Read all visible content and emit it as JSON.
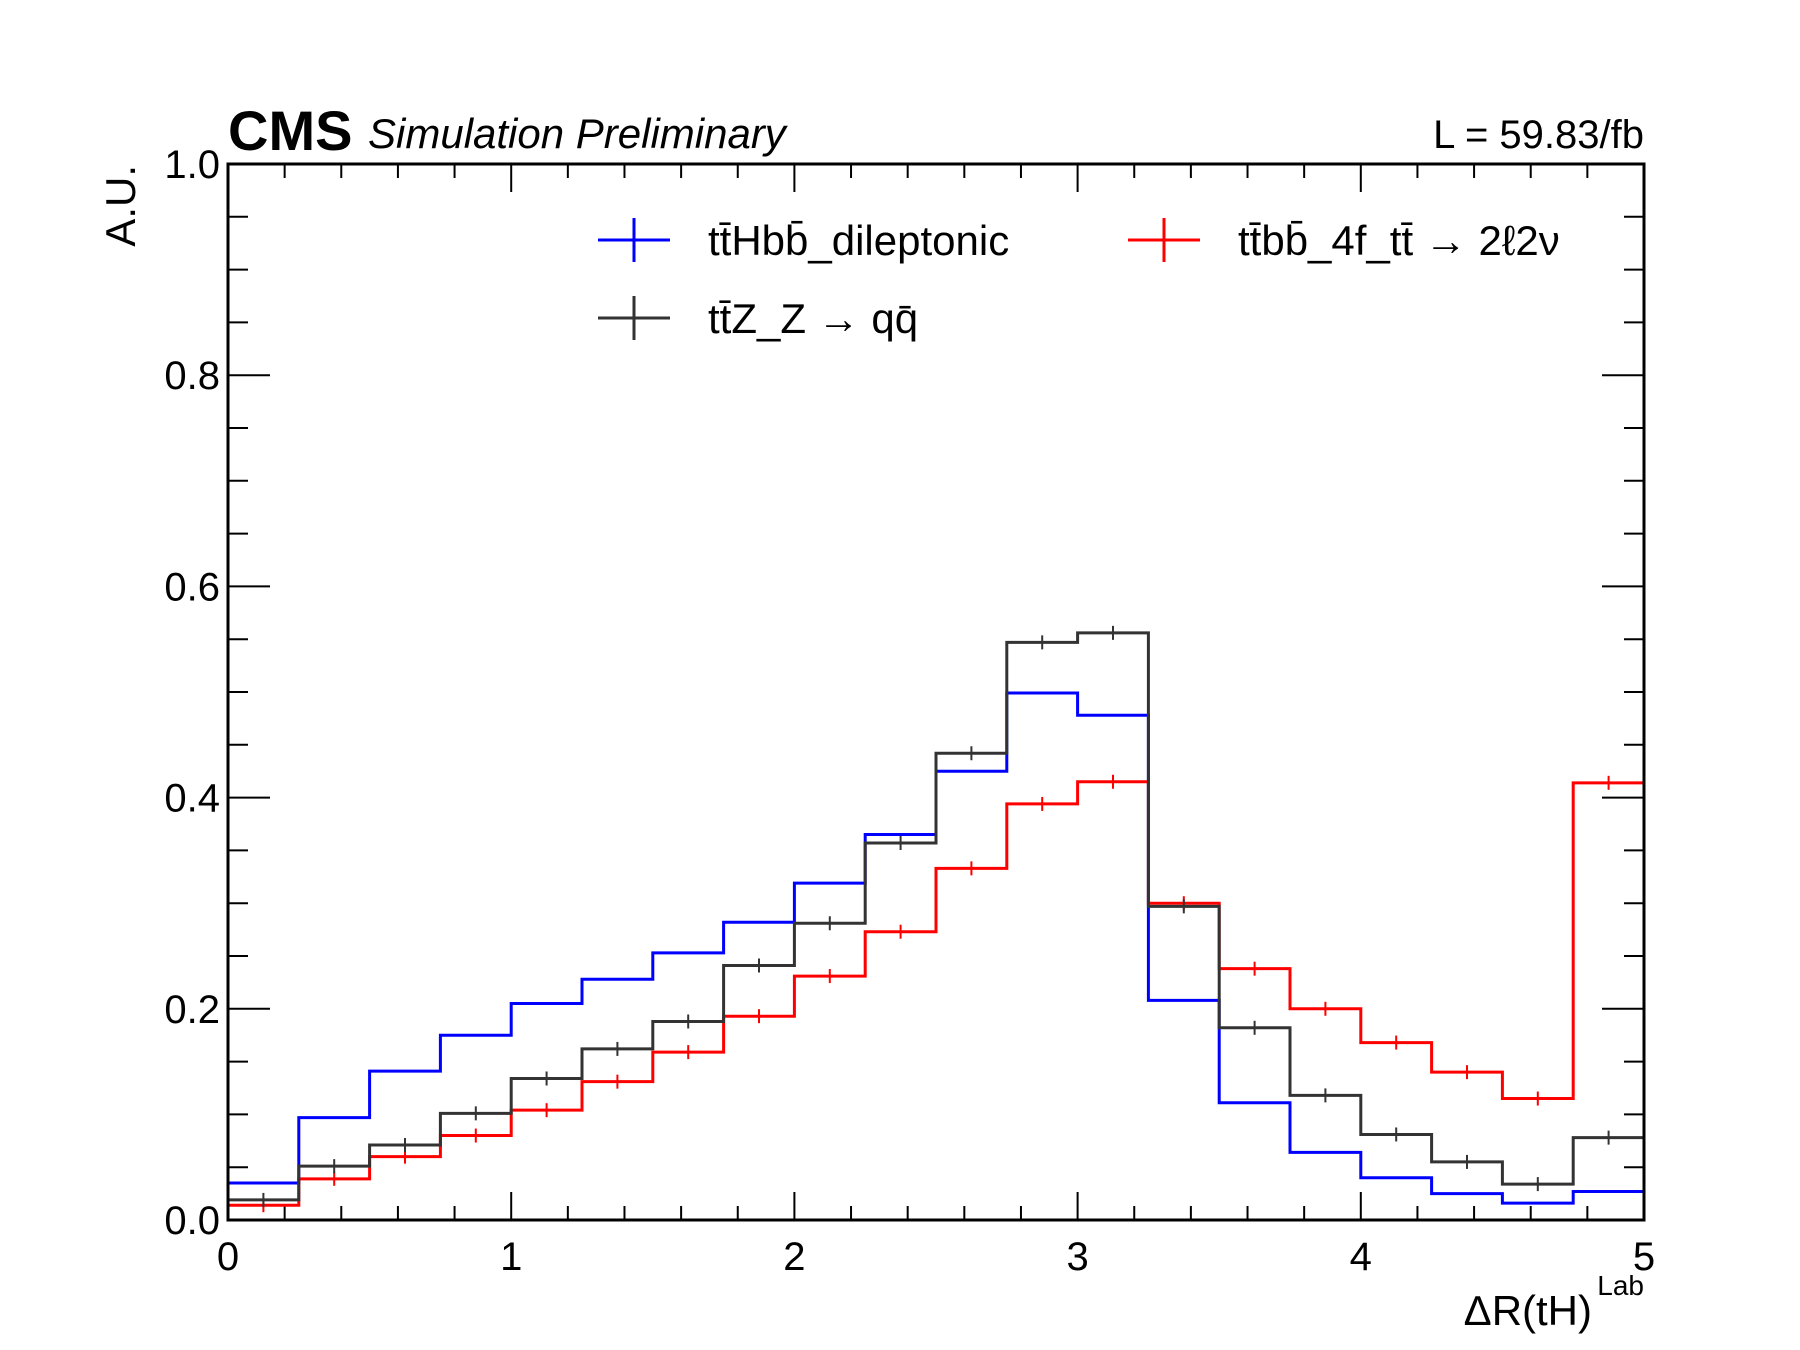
{
  "header": {
    "cms": "CMS",
    "subtitle": "Simulation Preliminary",
    "lumi": "L = 59.83/fb"
  },
  "chart_data": {
    "type": "line",
    "style": "step-histogram-with-error-bars",
    "xlabel": "ΔR(tH)",
    "xlabel_sup": "Lab",
    "ylabel": "A.U.",
    "xlim": [
      0,
      5
    ],
    "ylim": [
      0,
      1.0
    ],
    "x_ticks": [
      "0",
      "1",
      "2",
      "3",
      "4",
      "5"
    ],
    "y_ticks": [
      "0.0",
      "0.2",
      "0.4",
      "0.6",
      "0.8",
      "1.0"
    ],
    "bin_edges": [
      0,
      0.25,
      0.5,
      0.75,
      1.0,
      1.25,
      1.5,
      1.75,
      2.0,
      2.25,
      2.5,
      2.75,
      3.0,
      3.25,
      3.5,
      3.75,
      4.0,
      4.25,
      4.5,
      4.75,
      5.0
    ],
    "grid": false,
    "legend_position": "top",
    "series": [
      {
        "name": "tt̄Hbb̄_dileptonic",
        "color": "#0000ff",
        "values": [
          0.035,
          0.097,
          0.141,
          0.175,
          0.205,
          0.228,
          0.253,
          0.282,
          0.319,
          0.365,
          0.425,
          0.499,
          0.478,
          0.208,
          0.111,
          0.064,
          0.04,
          0.025,
          0.016,
          0.027
        ],
        "error_bars": false
      },
      {
        "name": "tt̄bb̄_4f_tt̄ → 2ℓ2ν",
        "color": "#ff0000",
        "values": [
          0.014,
          0.039,
          0.06,
          0.08,
          0.104,
          0.131,
          0.159,
          0.193,
          0.231,
          0.273,
          0.333,
          0.394,
          0.415,
          0.3,
          0.238,
          0.2,
          0.168,
          0.14,
          0.115,
          0.414
        ],
        "error_bars": true
      },
      {
        "name": "tt̄Z_Z → qq̄",
        "color": "#333333",
        "values": [
          0.019,
          0.051,
          0.071,
          0.101,
          0.134,
          0.162,
          0.188,
          0.241,
          0.281,
          0.357,
          0.442,
          0.547,
          0.556,
          0.297,
          0.182,
          0.118,
          0.081,
          0.055,
          0.034,
          0.078
        ],
        "error_bars": true
      }
    ]
  }
}
